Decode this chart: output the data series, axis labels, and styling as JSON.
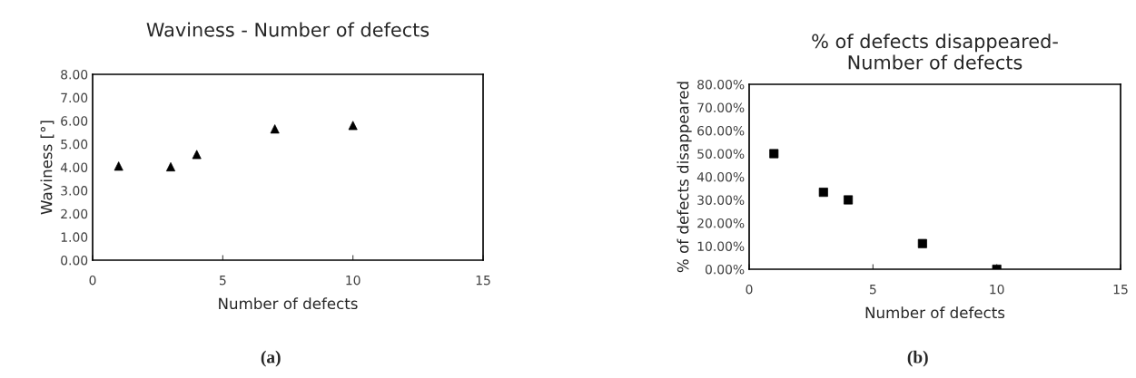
{
  "chart_data": [
    {
      "type": "scatter",
      "title": "Waviness - Number of defects",
      "xlabel": "Number of defects",
      "ylabel": "Waviness [°]",
      "annotations": [
        "(a)"
      ],
      "x": [
        1,
        3,
        4,
        7,
        10
      ],
      "series": [
        {
          "color": "#000000",
          "values": [
            4.05,
            4.02,
            4.55,
            5.65,
            5.8
          ]
        }
      ],
      "marker": "triangle",
      "xlim": [
        0,
        15
      ],
      "xticks": [
        0,
        5,
        10,
        15
      ],
      "ylim": [
        0,
        8
      ],
      "yticks": [
        {
          "value": 0,
          "label": "0.00"
        },
        {
          "value": 1,
          "label": "1.00"
        },
        {
          "value": 2,
          "label": "2.00"
        },
        {
          "value": 3,
          "label": "3.00"
        },
        {
          "value": 4,
          "label": "4.00"
        },
        {
          "value": 5,
          "label": "5.00"
        },
        {
          "value": 6,
          "label": "6.00"
        },
        {
          "value": 7,
          "label": "7.00"
        },
        {
          "value": 8,
          "label": "8.00"
        }
      ],
      "grid": false,
      "legend": false
    },
    {
      "type": "scatter",
      "title": "% of defects disappeared-\nNumber of defects",
      "xlabel": "Number of defects",
      "ylabel": "% of defects disappeared",
      "annotations": [
        "(b)"
      ],
      "x": [
        1,
        3,
        4,
        7,
        10
      ],
      "series": [
        {
          "color": "#000000",
          "values": [
            50,
            33.3,
            30,
            11.1,
            0
          ]
        }
      ],
      "marker": "square",
      "xlim": [
        0,
        15
      ],
      "xticks": [
        0,
        5,
        10,
        15
      ],
      "ylim": [
        0,
        80
      ],
      "yticks": [
        {
          "value": 0,
          "label": "0.00%"
        },
        {
          "value": 10,
          "label": "10.00%"
        },
        {
          "value": 20,
          "label": "20.00%"
        },
        {
          "value": 30,
          "label": "30.00%"
        },
        {
          "value": 40,
          "label": "40.00%"
        },
        {
          "value": 50,
          "label": "50.00%"
        },
        {
          "value": 60,
          "label": "60.00%"
        },
        {
          "value": 70,
          "label": "70.00%"
        },
        {
          "value": 80,
          "label": "80.00%"
        }
      ],
      "grid": false,
      "legend": false
    }
  ]
}
